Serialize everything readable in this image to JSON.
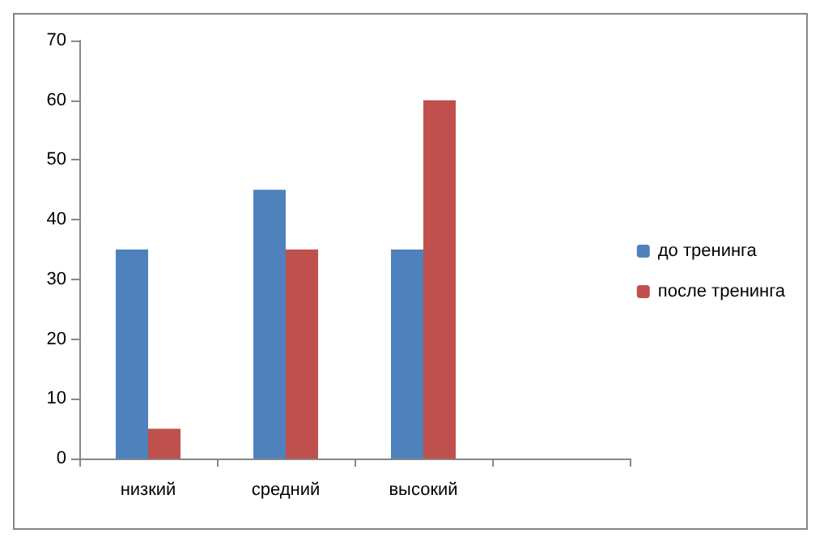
{
  "chart_data": {
    "type": "bar",
    "categories": [
      "низкий",
      "средний",
      "высокий",
      null
    ],
    "series": [
      {
        "name": "до тренинга",
        "color": "#4f81bd",
        "values": [
          35,
          45,
          35,
          null
        ]
      },
      {
        "name": "после тренинга",
        "color": "#c0504d",
        "values": [
          5,
          35,
          60,
          null
        ]
      }
    ],
    "ylim": [
      0,
      70
    ],
    "yticks": [
      0,
      10,
      20,
      30,
      40,
      50,
      60,
      70
    ],
    "grid": false,
    "legend": "right"
  }
}
